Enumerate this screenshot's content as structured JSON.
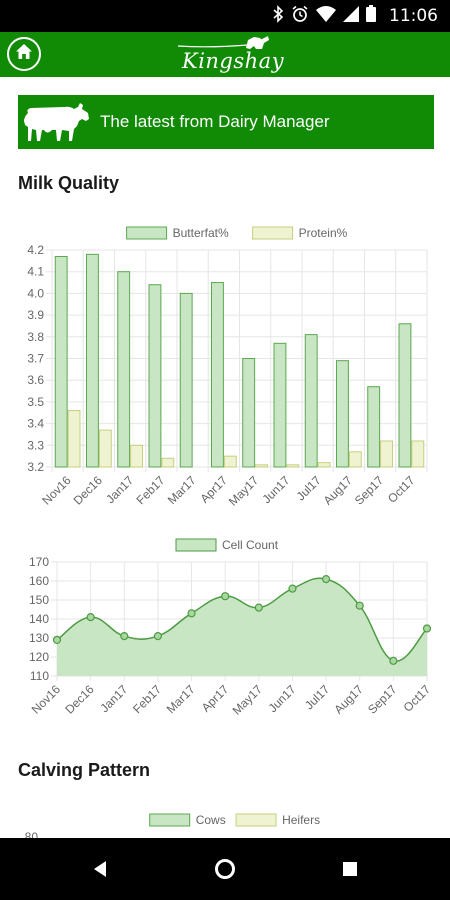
{
  "status_bar": {
    "time": "11:06",
    "icons": [
      "bluetooth-icon",
      "alarm-icon",
      "wifi-icon",
      "signal-icon",
      "battery-icon"
    ]
  },
  "header": {
    "logo_text": "Kingshay",
    "brand_color": "#118a06",
    "home_icon": "home-icon"
  },
  "banner": {
    "text": "The latest from Dairy Manager"
  },
  "sections": {
    "milk_quality": "Milk Quality",
    "calving_pattern": "Calving Pattern"
  },
  "chart_data": [
    {
      "type": "bar",
      "categories": [
        "Nov16",
        "Dec16",
        "Jan17",
        "Feb17",
        "Mar17",
        "Apr17",
        "May17",
        "Jun17",
        "Jul17",
        "Aug17",
        "Sep17",
        "Oct17"
      ],
      "series": [
        {
          "name": "Butterfat%",
          "values": [
            4.17,
            4.18,
            4.1,
            4.04,
            4.0,
            4.05,
            3.7,
            3.77,
            3.81,
            3.69,
            3.57,
            3.86
          ],
          "fill": "#c8e6c3",
          "stroke": "#5aa84f"
        },
        {
          "name": "Protein%",
          "values": [
            3.46,
            3.37,
            3.3,
            3.24,
            3.2,
            3.25,
            3.21,
            3.21,
            3.22,
            3.27,
            3.32,
            3.32
          ],
          "fill": "#f0f3d2",
          "stroke": "#c7cf7e"
        }
      ],
      "ylim": [
        3.2,
        4.2
      ],
      "yticks": [
        "4.2",
        "4.1",
        "4.0",
        "3.9",
        "3.8",
        "3.7",
        "3.6",
        "3.5",
        "3.4",
        "3.3",
        "3.2"
      ],
      "grid": true,
      "legend": "top-center"
    },
    {
      "type": "area",
      "categories": [
        "Nov16",
        "Dec16",
        "Jan17",
        "Feb17",
        "Mar17",
        "Apr17",
        "May17",
        "Jun17",
        "Jul17",
        "Aug17",
        "Sep17",
        "Oct17"
      ],
      "series": [
        {
          "name": "Cell Count",
          "values": [
            129,
            141,
            131,
            131,
            143,
            152,
            146,
            156,
            161,
            147,
            118,
            135
          ],
          "fill": "#c8e6c3",
          "stroke": "#4d9b43"
        }
      ],
      "ylim": [
        110,
        170
      ],
      "yticks": [
        "170",
        "160",
        "150",
        "140",
        "130",
        "120",
        "110"
      ],
      "grid": true,
      "legend": "top-center"
    },
    {
      "type": "bar",
      "series": [
        {
          "name": "Cows",
          "fill": "#c8e6c3",
          "stroke": "#5aa84f"
        },
        {
          "name": "Heifers",
          "fill": "#f0f3d2",
          "stroke": "#c7cf7e"
        }
      ],
      "yticks": [
        "80"
      ],
      "legend": "top-center"
    }
  ],
  "nav": {
    "back": "back-icon",
    "home": "home-circle-icon",
    "recents": "recents-icon"
  }
}
